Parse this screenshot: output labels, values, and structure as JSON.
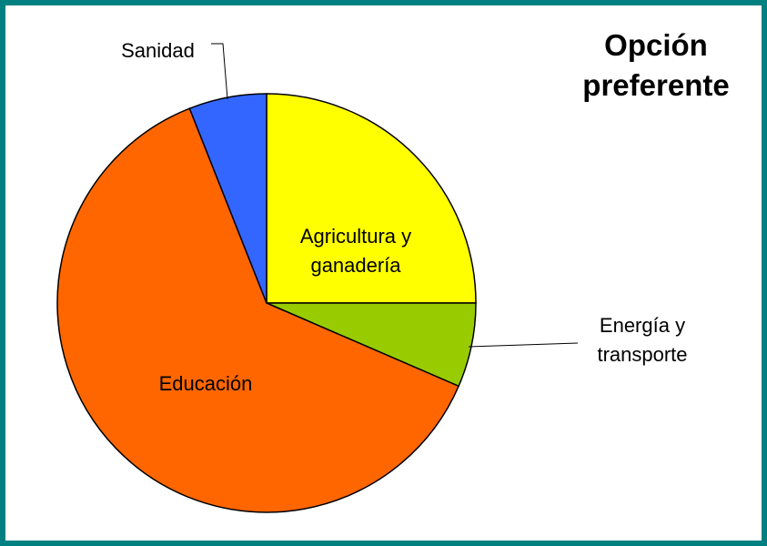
{
  "chart_data": {
    "type": "pie",
    "title": "Opción preferente",
    "categories": [
      "Agricultura y ganadería",
      "Energía y transporte",
      "Educación",
      "Sanidad"
    ],
    "values": [
      25,
      6.5,
      62.5,
      6
    ],
    "colors": [
      "#ffff00",
      "#99cc00",
      "#ff6600",
      "#3366ff"
    ]
  }
}
